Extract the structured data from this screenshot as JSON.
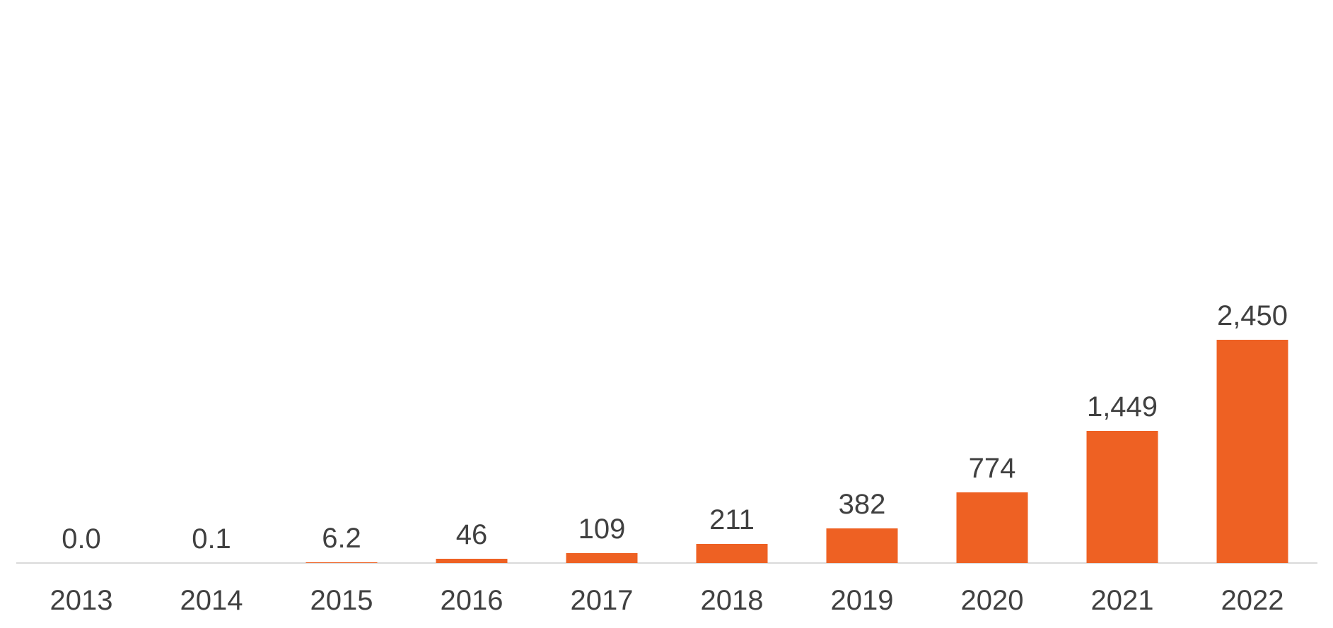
{
  "chart_data": {
    "type": "bar",
    "categories": [
      "2013",
      "2014",
      "2015",
      "2016",
      "2017",
      "2018",
      "2019",
      "2020",
      "2021",
      "2022"
    ],
    "values": [
      0.0,
      0.1,
      6.2,
      46,
      109,
      211,
      382,
      774,
      1449,
      2450
    ],
    "value_labels": [
      "0.0",
      "0.1",
      "6.2",
      "46",
      "109",
      "211",
      "382",
      "774",
      "1,449",
      "2,450"
    ],
    "title": "",
    "xlabel": "",
    "ylabel": "",
    "ylim": [
      0,
      2520
    ],
    "grid": false,
    "legend": false,
    "data_labels_shown": true,
    "bar_color": "#EE6123",
    "axis_line_color": "#D9D9D9",
    "label_color": "#404040"
  }
}
